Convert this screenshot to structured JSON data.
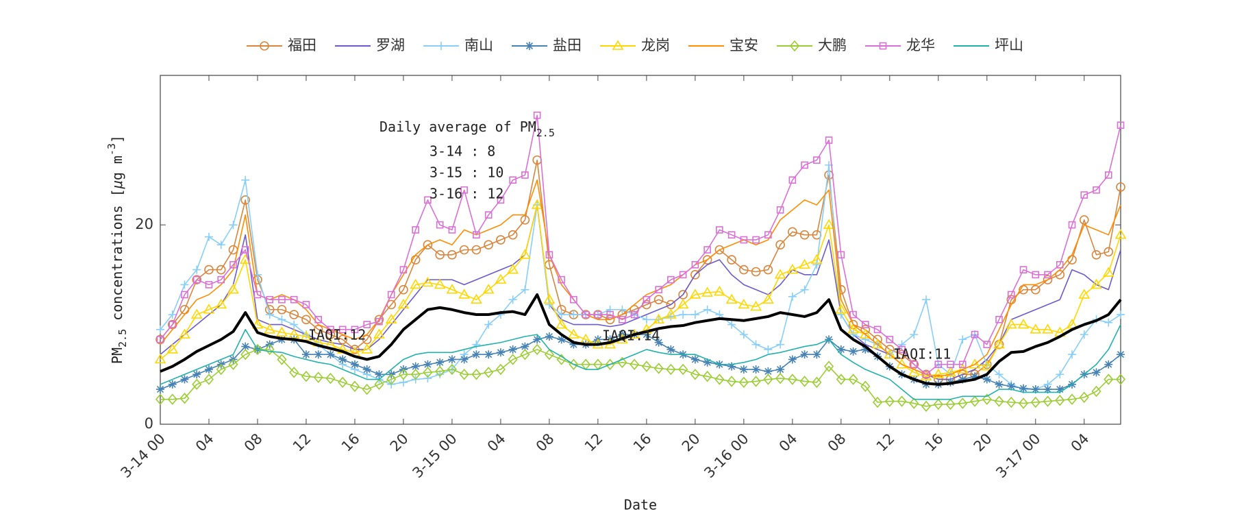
{
  "chart_data": {
    "type": "line",
    "annotation": {
      "text": "Daily average of PM",
      "subscript": "2.5",
      "lines": [
        "3-14 : 8",
        "3-15 : 10",
        "3-16 : 12"
      ]
    },
    "iaqi_labels": [
      "IAQI:12",
      "IAQI:14",
      "IAQI:11"
    ],
    "xlabel": "Date",
    "ylabel": [
      "PM",
      "2.5",
      " concentrations [",
      "μ",
      "g m",
      "-3",
      "]"
    ],
    "xlim": [
      0,
      79
    ],
    "ylim": [
      0,
      35
    ],
    "yticks": [
      0,
      20
    ],
    "xticks": [
      {
        "value": 0,
        "label": "3-14 00"
      },
      {
        "value": 4,
        "label": "04"
      },
      {
        "value": 8,
        "label": "08"
      },
      {
        "value": 12,
        "label": "12"
      },
      {
        "value": 16,
        "label": "16"
      },
      {
        "value": 20,
        "label": "20"
      },
      {
        "value": 24,
        "label": "3-15 00"
      },
      {
        "value": 28,
        "label": "04"
      },
      {
        "value": 32,
        "label": "08"
      },
      {
        "value": 36,
        "label": "12"
      },
      {
        "value": 40,
        "label": "16"
      },
      {
        "value": 44,
        "label": "20"
      },
      {
        "value": 48,
        "label": "3-16 00"
      },
      {
        "value": 52,
        "label": "04"
      },
      {
        "value": 56,
        "label": "08"
      },
      {
        "value": 60,
        "label": "12"
      },
      {
        "value": 64,
        "label": "16"
      },
      {
        "value": 68,
        "label": "20"
      },
      {
        "value": 72,
        "label": "3-17 00"
      },
      {
        "value": 76,
        "label": "04"
      }
    ],
    "x": [
      0,
      1,
      2,
      3,
      4,
      5,
      6,
      7,
      8,
      9,
      10,
      11,
      12,
      13,
      14,
      15,
      16,
      17,
      18,
      19,
      20,
      21,
      22,
      23,
      24,
      25,
      26,
      27,
      28,
      29,
      30,
      31,
      32,
      33,
      34,
      35,
      36,
      37,
      38,
      39,
      40,
      41,
      42,
      43,
      44,
      45,
      46,
      47,
      48,
      49,
      50,
      51,
      52,
      53,
      54,
      55,
      56,
      57,
      58,
      59,
      60,
      61,
      62,
      63,
      64,
      65,
      66,
      67,
      68,
      69,
      70,
      71,
      72,
      73,
      74,
      75,
      76,
      77,
      78,
      79
    ],
    "series": [
      {
        "name": "福田",
        "color": "#d9853b",
        "marker": "circle",
        "values": [
          8.5,
          10,
          11.5,
          14.5,
          15.5,
          15.5,
          17.5,
          22.5,
          14.5,
          11.5,
          11.5,
          11,
          10.5,
          9.5,
          9,
          8.5,
          7.5,
          8.5,
          10.5,
          12,
          13.5,
          16.5,
          18,
          17,
          17,
          17.5,
          17.5,
          18,
          18.5,
          19,
          20.5,
          26.5,
          16,
          11.5,
          11,
          11,
          11,
          10.5,
          11,
          11.5,
          12,
          12.5,
          12,
          13,
          15,
          16.5,
          17.5,
          16.5,
          15.5,
          15.3,
          15.5,
          18,
          19.3,
          19,
          19,
          25,
          13.5,
          10,
          9.5,
          8.5,
          7.5,
          7,
          6,
          5,
          4.5,
          4.5,
          5,
          5,
          6,
          8,
          12.5,
          13.5,
          13.5,
          14.5,
          15,
          16.5,
          20.5,
          17,
          17.3,
          23.8
        ]
      },
      {
        "name": "罗湖",
        "color": "#6a5acd",
        "marker": "none",
        "values": [
          7,
          8,
          9,
          10,
          11,
          12,
          14,
          19,
          10.5,
          10,
          10,
          9.5,
          9,
          8.5,
          8.2,
          8,
          7.5,
          7.5,
          8.5,
          10,
          11.5,
          13,
          14.5,
          14.5,
          14.5,
          14,
          14.5,
          15,
          15.5,
          16,
          17,
          22,
          12,
          10.5,
          10,
          10,
          10,
          9.8,
          10,
          10.5,
          11,
          11.5,
          12,
          13,
          15,
          16,
          16.5,
          15,
          14,
          13.5,
          13,
          14,
          15.5,
          15,
          15,
          18.5,
          11,
          9,
          8,
          7.5,
          7,
          6,
          5.5,
          5,
          4.5,
          4.5,
          5,
          5.5,
          6.5,
          8,
          10.5,
          11,
          11.5,
          12,
          12.5,
          15.5,
          15,
          14,
          13.5,
          17.5
        ]
      },
      {
        "name": "南山",
        "color": "#87cefa",
        "marker": "plus",
        "values": [
          9.5,
          11,
          14,
          15.5,
          18.8,
          18,
          20,
          24.5,
          15,
          11,
          10.5,
          10,
          9,
          8,
          7,
          6,
          5.5,
          5,
          4.5,
          4,
          4.2,
          4.5,
          4.6,
          5,
          5.5,
          7,
          8,
          10,
          11,
          12.5,
          13.5,
          22,
          12,
          11,
          11,
          11,
          11,
          11.5,
          11.5,
          11,
          10.5,
          10.5,
          10.8,
          11,
          11,
          11.5,
          11,
          10,
          9,
          8,
          7.5,
          8,
          12.8,
          13.5,
          16,
          26,
          11,
          9,
          8.5,
          8,
          7,
          8,
          9,
          12.5,
          6,
          5,
          8.5,
          9,
          6,
          5,
          4,
          3.5,
          3.5,
          4,
          5,
          7,
          9,
          10.5,
          10.2,
          11
        ]
      },
      {
        "name": "盐田",
        "color": "#4682b4",
        "marker": "asterisk",
        "values": [
          3.5,
          4,
          4.5,
          5,
          5.5,
          6,
          6.5,
          7.8,
          7.5,
          8,
          8.5,
          8.5,
          7,
          7,
          7,
          6.5,
          6,
          5.5,
          5,
          5,
          5.5,
          5.8,
          6,
          6.2,
          6.5,
          6.5,
          7,
          7,
          7.2,
          7.5,
          7.8,
          8.5,
          8.8,
          8.5,
          8,
          8,
          8.5,
          8.5,
          9,
          9,
          9,
          8.2,
          7.5,
          7,
          6.5,
          6.2,
          6,
          5.8,
          5.5,
          5.5,
          5.3,
          5.5,
          6.5,
          7,
          7,
          8.5,
          7.5,
          7.3,
          7.5,
          6.8,
          5.8,
          5,
          4.5,
          4,
          4,
          4.2,
          4.5,
          4.8,
          4.5,
          4,
          3.8,
          3.6,
          3.5,
          3.5,
          3.5,
          4,
          5,
          5.2,
          6,
          7
        ]
      },
      {
        "name": "龙岗",
        "color": "#ffd700",
        "marker": "triangle",
        "values": [
          6.5,
          7.5,
          9,
          11,
          11.5,
          12,
          13.5,
          16.5,
          10,
          9.5,
          9.2,
          9,
          8.8,
          8.2,
          8,
          7.5,
          7.2,
          7.5,
          9,
          10.5,
          12,
          14,
          14.2,
          14,
          13.5,
          13,
          12.5,
          13.5,
          14.5,
          15.5,
          17,
          22,
          12.5,
          10,
          9,
          8.5,
          8,
          8,
          8.5,
          9,
          9.5,
          10.5,
          11,
          12,
          13,
          13.2,
          13.3,
          12.5,
          12,
          11.8,
          12.5,
          15,
          15.5,
          16,
          16.5,
          20,
          11.5,
          9.5,
          9,
          8,
          7,
          6,
          5.2,
          4.8,
          5,
          5.2,
          5.5,
          6,
          5.8,
          8,
          10,
          10,
          9.5,
          9.5,
          9.2,
          10,
          13,
          14,
          15.2,
          19
        ]
      },
      {
        "name": "宝安",
        "color": "#ff8c00",
        "marker": "none",
        "values": [
          8,
          9.5,
          11,
          12.5,
          13,
          14,
          15.5,
          21,
          13,
          12.5,
          13,
          12.5,
          11.5,
          10,
          9.5,
          9,
          8.5,
          9,
          10.5,
          13,
          15,
          17,
          18,
          18.5,
          18,
          19.5,
          19,
          19.5,
          20,
          21,
          21,
          24.5,
          17,
          14,
          12.5,
          11,
          10.5,
          10.5,
          11,
          12,
          13,
          13.5,
          14,
          15,
          16,
          16.5,
          17.5,
          18,
          18.5,
          18,
          18.5,
          20.5,
          21.5,
          22.5,
          22,
          23.5,
          12.5,
          10,
          9,
          8,
          7,
          6,
          5.5,
          5,
          4.8,
          5,
          5.5,
          6,
          7,
          9.5,
          12,
          14,
          14,
          14.5,
          15.5,
          17,
          20,
          19.5,
          19,
          22
        ]
      },
      {
        "name": "大鹏",
        "color": "#9acd32",
        "marker": "diamond",
        "values": [
          2.5,
          2.5,
          2.6,
          4,
          4.5,
          5.5,
          6,
          7,
          7.5,
          7.5,
          6.5,
          5.2,
          4.8,
          4.7,
          4.6,
          4.2,
          3.8,
          3.5,
          4,
          4.5,
          5,
          5,
          5.2,
          5.3,
          5.5,
          5,
          5,
          5.2,
          5.5,
          6.5,
          7,
          7.5,
          7,
          6.5,
          6,
          6,
          6,
          6,
          6.2,
          6,
          5.8,
          5.6,
          5.5,
          5.5,
          5,
          4.8,
          4.5,
          4.3,
          4.2,
          4.3,
          4.5,
          4.6,
          4.5,
          4.3,
          4.2,
          5.8,
          4.5,
          4.5,
          3.8,
          2.2,
          2.3,
          2.3,
          2.1,
          1.8,
          2,
          2,
          2.1,
          2.3,
          2.5,
          2.3,
          2.2,
          2.1,
          2.2,
          2.3,
          2.4,
          2.5,
          2.7,
          3.3,
          4.5,
          4.5
        ]
      },
      {
        "name": "龙华",
        "color": "#da70d6",
        "marker": "square",
        "values": [
          8.5,
          10,
          13,
          14.5,
          14,
          14.5,
          16,
          17.5,
          13,
          12.5,
          12.5,
          12.5,
          12,
          10.5,
          9.5,
          9.5,
          9.5,
          10,
          10.3,
          13,
          15.5,
          19.5,
          22.5,
          20,
          19.5,
          23.5,
          19,
          21,
          22.5,
          24.5,
          25,
          31,
          17,
          14.5,
          12.5,
          11,
          11,
          11,
          10.5,
          11,
          12.5,
          13.5,
          14.5,
          15,
          16,
          17.5,
          19.5,
          19,
          18.5,
          18.5,
          19,
          21.5,
          24.5,
          26,
          26.5,
          28.5,
          17,
          11,
          10,
          9.5,
          8.5,
          7.5,
          6,
          5,
          6,
          6,
          6,
          9,
          8,
          10.5,
          13,
          15.5,
          15,
          15,
          16,
          20,
          23,
          23.5,
          25,
          30
        ]
      },
      {
        "name": "坪山",
        "color": "#20b2aa",
        "marker": "none",
        "values": [
          4,
          4.5,
          5,
          5.5,
          6,
          6.5,
          7,
          9.5,
          7.5,
          7.3,
          7.2,
          6.8,
          6.5,
          6.2,
          6,
          5.5,
          5,
          4.5,
          4.5,
          5.5,
          6.5,
          7,
          7.2,
          7.2,
          7.2,
          7.5,
          7.8,
          8,
          8.2,
          8.5,
          8.8,
          9,
          7.5,
          6.8,
          6,
          5.5,
          5.5,
          6,
          6.5,
          7,
          7.5,
          7.2,
          7,
          7,
          7,
          6.5,
          6,
          6,
          6.2,
          6.5,
          7,
          7.2,
          7.5,
          7.8,
          8,
          8.5,
          7,
          6.2,
          5.5,
          5,
          4.5,
          3.5,
          2.5,
          2.5,
          2.5,
          2.5,
          2.8,
          2.8,
          2.8,
          3.5,
          3.5,
          3.2,
          3.2,
          3.2,
          3.2,
          4,
          5,
          6,
          7.5,
          10
        ]
      },
      {
        "color": "#000000",
        "width": 4,
        "marker": "none",
        "values": [
          5.3,
          5.8,
          6.5,
          7.3,
          7.9,
          8.5,
          9.3,
          11.2,
          9.2,
          8.8,
          8.6,
          8.5,
          8.3,
          7.9,
          7.6,
          7.3,
          6.8,
          6.5,
          6.8,
          8,
          9.5,
          10.5,
          11.5,
          11.7,
          11.5,
          11.2,
          11,
          11,
          11.2,
          11.3,
          11,
          13,
          10,
          9,
          8.2,
          8,
          8,
          8.2,
          8.6,
          9,
          9.3,
          9.6,
          9.8,
          9.9,
          10.2,
          10.4,
          10.6,
          10.5,
          10.4,
          10.6,
          10.8,
          11.2,
          11,
          10.8,
          11.2,
          12.5,
          9.5,
          8.5,
          7.8,
          6.8,
          5.8,
          5,
          4.5,
          4.1,
          4,
          4.1,
          4.3,
          4.5,
          5,
          6.3,
          7.2,
          7.3,
          7.8,
          8.2,
          8.8,
          9.5,
          10,
          10.4,
          11,
          12.5
        ]
      }
    ]
  }
}
